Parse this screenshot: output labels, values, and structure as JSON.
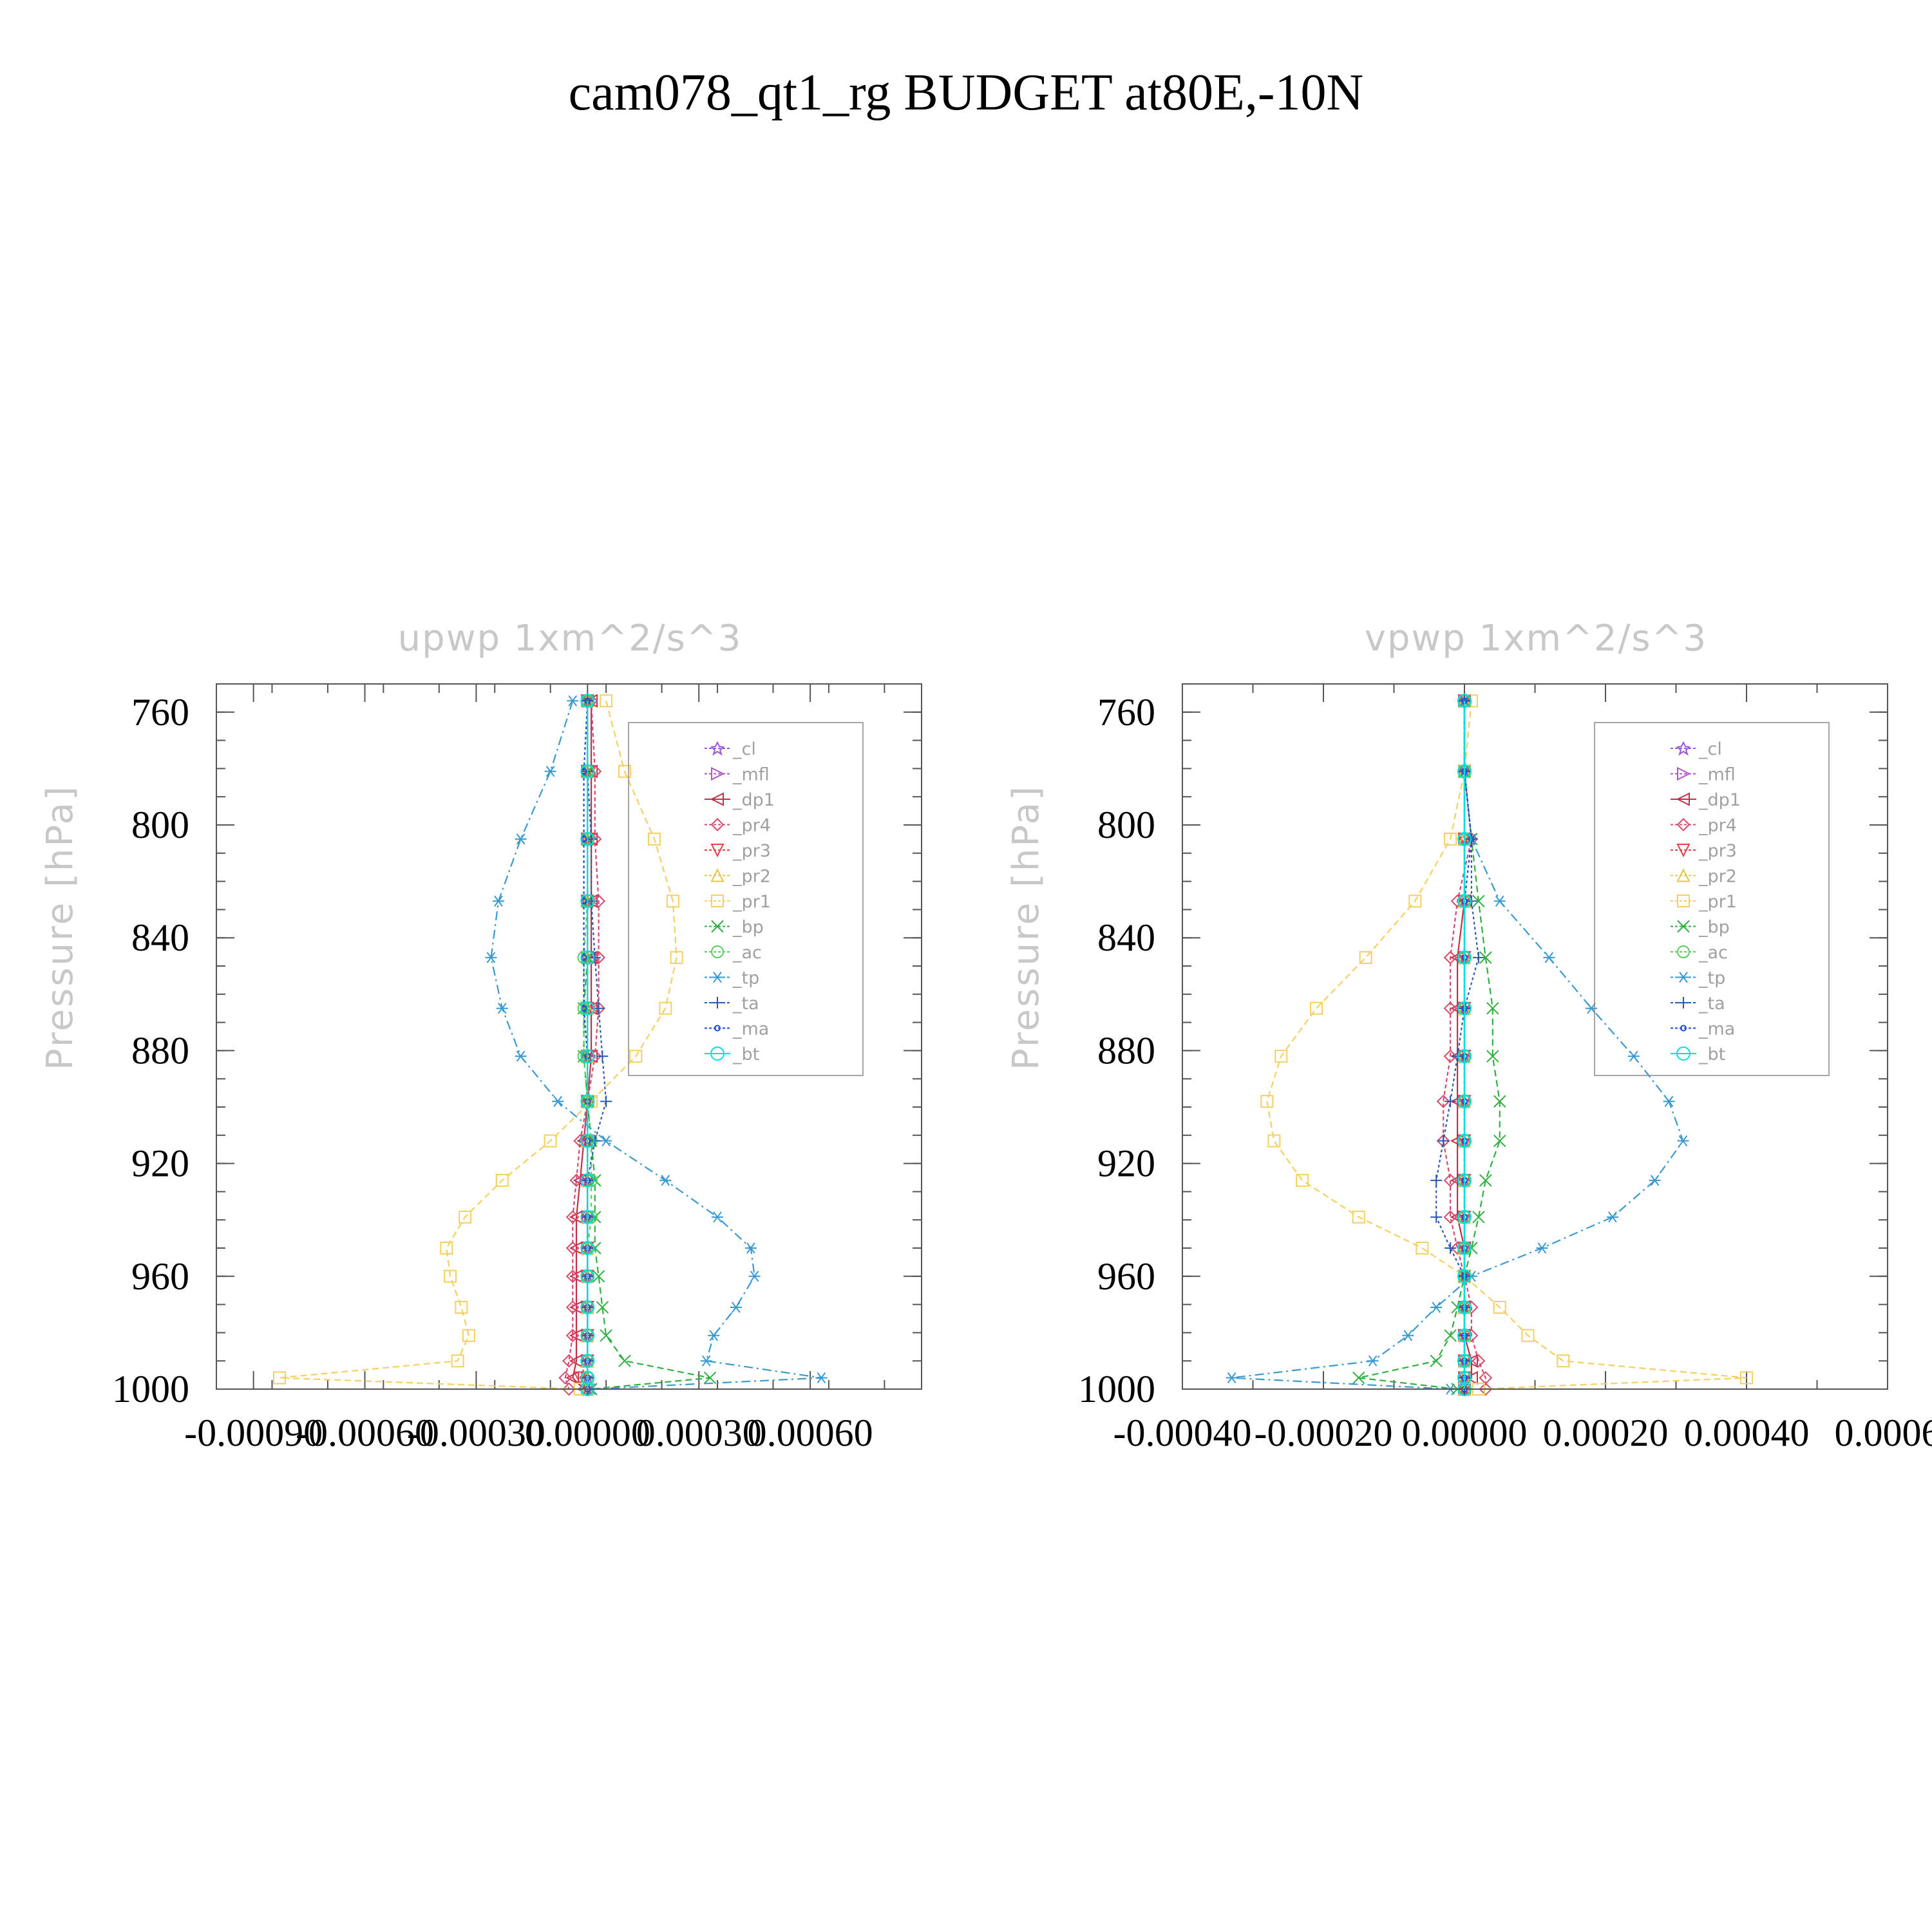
{
  "title": "cam078_qt1_rg  BUDGET at80E,-10N",
  "legend": [
    "_cl",
    "_mfl",
    "_dp1",
    "_pr4",
    "_pr3",
    "_pr2",
    "_pr1",
    "_bp",
    "_ac",
    "_tp",
    "_ta",
    "_ma",
    "_bt"
  ],
  "series_style": {
    "_cl": {
      "color": "#9b59d0",
      "marker": "star",
      "dash": "4,4"
    },
    "_mfl": {
      "color": "#b055c8",
      "marker": "tri-right",
      "dash": "8,4"
    },
    "_dp1": {
      "color": "#c0304a",
      "marker": "tri-left",
      "dash": ""
    },
    "_pr4": {
      "color": "#d64a6a",
      "marker": "diamond",
      "dash": "6,4"
    },
    "_pr3": {
      "color": "#e8404a",
      "marker": "tri-down",
      "dash": "6,4"
    },
    "_pr2": {
      "color": "#e8c44a",
      "marker": "tri-up",
      "dash": "6,4"
    },
    "_pr1": {
      "color": "#f5d060",
      "marker": "square",
      "dash": "10,6"
    },
    "_bp": {
      "color": "#30b040",
      "marker": "x",
      "dash": "10,6"
    },
    "_ac": {
      "color": "#5ad05a",
      "marker": "circle",
      "dash": "6,6"
    },
    "_tp": {
      "color": "#3a9ad0",
      "marker": "asterisk",
      "dash": "14,6,3,6"
    },
    "_ta": {
      "color": "#2a5ab0",
      "marker": "plus",
      "dash": "4,4"
    },
    "_ma": {
      "color": "#1a4ad0",
      "marker": "dot",
      "dash": "4,4"
    },
    "_bt": {
      "color": "#00e0e0",
      "marker": "filled-circle",
      "dash": ""
    }
  },
  "chart_data": [
    {
      "type": "line",
      "title": "upwp    1xm^2/s^3",
      "ylabel": "Pressure  [hPa]",
      "xlim": [
        -0.001,
        0.0009
      ],
      "ylim": [
        1000,
        750
      ],
      "xticks": [
        -0.0009,
        -0.0006,
        -0.0003,
        0.0,
        0.0003,
        0.0006
      ],
      "xtick_labels": [
        "-0.00090",
        "-0.00060",
        "-0.00030",
        "0.00000",
        "0.00030",
        "0.00060"
      ],
      "yticks": [
        760,
        800,
        840,
        880,
        920,
        960,
        1000
      ],
      "ytick_labels": [
        "760",
        "800",
        "840",
        "880",
        "920",
        "960",
        "1000"
      ],
      "legend_position": "top-right",
      "pressure": [
        756,
        781,
        805,
        827,
        847,
        865,
        882,
        898,
        912,
        926,
        939,
        950,
        960,
        971,
        981,
        990,
        996,
        1000
      ],
      "series": [
        {
          "name": "_cl",
          "values": [
            0,
            0,
            0,
            0,
            0,
            0,
            0,
            0,
            0,
            0,
            0,
            0,
            0,
            0,
            0,
            0,
            0,
            0
          ]
        },
        {
          "name": "_mfl",
          "values": [
            0,
            0,
            0,
            0,
            0,
            0,
            0,
            0,
            0,
            0,
            0,
            0,
            0,
            0,
            0,
            0,
            0,
            0
          ]
        },
        {
          "name": "_dp1",
          "values": [
            1e-05,
            1e-05,
            1e-05,
            1e-05,
            1e-05,
            1e-05,
            1e-05,
            0.0,
            -1e-05,
            -2e-05,
            -3e-05,
            -3e-05,
            -3e-05,
            -3e-05,
            -3e-05,
            -3e-05,
            -4e-05,
            -1e-05
          ]
        },
        {
          "name": "_pr4",
          "values": [
            1e-05,
            2e-05,
            2e-05,
            3e-05,
            3e-05,
            3e-05,
            2e-05,
            0.0,
            -2e-05,
            -3e-05,
            -4e-05,
            -4e-05,
            -4e-05,
            -4e-05,
            -4e-05,
            -5e-05,
            -6e-05,
            -5e-05
          ]
        },
        {
          "name": "_pr3",
          "values": [
            0,
            0,
            0,
            0,
            0,
            0,
            0,
            0,
            0,
            0,
            0,
            0,
            0,
            0,
            0,
            0,
            -2e-05,
            0
          ]
        },
        {
          "name": "_pr2",
          "values": [
            0,
            0,
            0,
            0,
            0,
            0,
            0,
            0,
            0,
            0,
            0,
            0,
            0,
            0,
            0,
            0,
            0,
            0
          ]
        },
        {
          "name": "_pr1",
          "values": [
            5e-05,
            0.0001,
            0.00018,
            0.00023,
            0.00024,
            0.00021,
            0.00013,
            1e-05,
            -0.0001,
            -0.00023,
            -0.00033,
            -0.00038,
            -0.00037,
            -0.00034,
            -0.00032,
            -0.00035,
            -0.00083,
            -2e-05
          ]
        },
        {
          "name": "_bp",
          "values": [
            0,
            0,
            0,
            0,
            0,
            -1e-05,
            -1e-05,
            0.0,
            1e-05,
            2e-05,
            2e-05,
            2e-05,
            3e-05,
            4e-05,
            5e-05,
            0.0001,
            0.00033,
            1e-05
          ]
        },
        {
          "name": "_ac",
          "values": [
            0,
            0,
            0,
            0,
            -1e-05,
            -1e-05,
            -1e-05,
            0.0,
            1e-05,
            1e-05,
            1e-05,
            0.0,
            0.0,
            0.0,
            0.0,
            0.0,
            0.0,
            0.0
          ]
        },
        {
          "name": "_tp",
          "values": [
            -4e-05,
            -0.0001,
            -0.00018,
            -0.00024,
            -0.00026,
            -0.00023,
            -0.00018,
            -8e-05,
            5e-05,
            0.00021,
            0.00035,
            0.00044,
            0.00045,
            0.0004,
            0.00034,
            0.00032,
            0.00063,
            1e-05
          ]
        },
        {
          "name": "_ta",
          "values": [
            0,
            0.0,
            1e-05,
            1e-05,
            2e-05,
            3e-05,
            4e-05,
            5e-05,
            2e-05,
            0.0,
            0.0,
            0.0,
            0.0,
            0.0,
            0.0,
            0.0,
            0.0,
            0.0
          ]
        },
        {
          "name": "_ma",
          "values": [
            0,
            -1e-05,
            -1e-05,
            -1e-05,
            -1e-05,
            -1e-05,
            0.0,
            0.0,
            0.0,
            0.0,
            0.0,
            0.0,
            0.0,
            0.0,
            0.0,
            0.0,
            0.0,
            0.0
          ]
        },
        {
          "name": "_bt",
          "values": [
            0,
            0,
            0,
            0,
            0,
            0,
            0,
            0,
            0,
            0,
            0,
            0,
            0,
            0,
            0,
            0,
            0,
            0
          ]
        }
      ]
    },
    {
      "type": "line",
      "title": "vpwp    1xm^2/s^3",
      "ylabel": "Pressure  [hPa]",
      "xlim": [
        -0.0004,
        0.0006
      ],
      "ylim": [
        1000,
        750
      ],
      "xticks": [
        -0.0004,
        -0.0002,
        0.0,
        0.0002,
        0.0004,
        0.0006
      ],
      "xtick_labels": [
        "-0.00040",
        "-0.00020",
        "0.00000",
        "0.00020",
        "0.00040",
        "0.0006"
      ],
      "yticks": [
        760,
        800,
        840,
        880,
        920,
        960,
        1000
      ],
      "ytick_labels": [
        "760",
        "800",
        "840",
        "880",
        "920",
        "960",
        "1000"
      ],
      "legend_position": "top-right",
      "pressure": [
        756,
        781,
        805,
        827,
        847,
        865,
        882,
        898,
        912,
        926,
        939,
        950,
        960,
        971,
        981,
        990,
        996,
        1000
      ],
      "series": [
        {
          "name": "_cl",
          "values": [
            0,
            0,
            0,
            0,
            0,
            0,
            0,
            0,
            0,
            0,
            0,
            0,
            0,
            0,
            0,
            0,
            0,
            0
          ]
        },
        {
          "name": "_mfl",
          "values": [
            0,
            0,
            0,
            0,
            0,
            0,
            0,
            0,
            0,
            0,
            0,
            0,
            0,
            0,
            0,
            0,
            0,
            0
          ]
        },
        {
          "name": "_dp1",
          "values": [
            0.0,
            0.0,
            0.0,
            0.0,
            -1e-05,
            -1e-05,
            -1e-05,
            -1e-05,
            -1e-05,
            -1e-05,
            -1e-05,
            0.0,
            0.0,
            0.0,
            0.0,
            1e-05,
            1e-05,
            0.0
          ]
        },
        {
          "name": "_pr4",
          "values": [
            0.0,
            0.0,
            1e-05,
            -1e-05,
            -2e-05,
            -2e-05,
            -2e-05,
            -3e-05,
            -3e-05,
            -2e-05,
            -2e-05,
            -1e-05,
            0.0,
            1e-05,
            1e-05,
            2e-05,
            3e-05,
            3e-05
          ]
        },
        {
          "name": "_pr3",
          "values": [
            0,
            0,
            0,
            0,
            0,
            0,
            0,
            0,
            0,
            0,
            0,
            0,
            0,
            0,
            0,
            0,
            0,
            0
          ]
        },
        {
          "name": "_pr2",
          "values": [
            0,
            0,
            0,
            0,
            0,
            0,
            0,
            0,
            0,
            0,
            0,
            0,
            0,
            0,
            0,
            0,
            0,
            0
          ]
        },
        {
          "name": "_pr1",
          "values": [
            1e-05,
            0.0,
            -2e-05,
            -7e-05,
            -0.00014,
            -0.00021,
            -0.00026,
            -0.00028,
            -0.00027,
            -0.00023,
            -0.00015,
            -6e-05,
            0.0,
            5e-05,
            9e-05,
            0.00014,
            0.0004,
            2e-05
          ]
        },
        {
          "name": "_bp",
          "values": [
            0.0,
            0.0,
            1e-05,
            2e-05,
            3e-05,
            4e-05,
            4e-05,
            5e-05,
            5e-05,
            3e-05,
            2e-05,
            1e-05,
            0.0,
            -1e-05,
            -2e-05,
            -4e-05,
            -0.00015,
            -1e-05
          ]
        },
        {
          "name": "_ac",
          "values": [
            0,
            0,
            0,
            0,
            0,
            0,
            0,
            0,
            0,
            0,
            0,
            0,
            0,
            0,
            0,
            0,
            0,
            0
          ]
        },
        {
          "name": "_tp",
          "values": [
            0.0,
            0.0,
            1e-05,
            5e-05,
            0.00012,
            0.00018,
            0.00024,
            0.00029,
            0.00031,
            0.00027,
            0.00021,
            0.00011,
            1e-05,
            -4e-05,
            -8e-05,
            -0.00013,
            -0.00033,
            -2e-05
          ]
        },
        {
          "name": "_ta",
          "values": [
            0.0,
            0.0,
            1e-05,
            1e-05,
            2e-05,
            0.0,
            -1e-05,
            -2e-05,
            -3e-05,
            -4e-05,
            -4e-05,
            -2e-05,
            0.0,
            0.0,
            0.0,
            0.0,
            0.0,
            0.0
          ]
        },
        {
          "name": "_ma",
          "values": [
            0.0,
            0.0,
            1e-05,
            0.0,
            0.0,
            0.0,
            0.0,
            0.0,
            0.0,
            0.0,
            0.0,
            0.0,
            0.0,
            0.0,
            0.0,
            0.0,
            0.0,
            0.0
          ]
        },
        {
          "name": "_bt",
          "values": [
            0,
            0,
            0,
            0,
            0,
            0,
            0,
            0,
            0,
            0,
            0,
            0,
            0,
            0,
            0,
            0,
            0,
            0
          ]
        }
      ]
    }
  ]
}
